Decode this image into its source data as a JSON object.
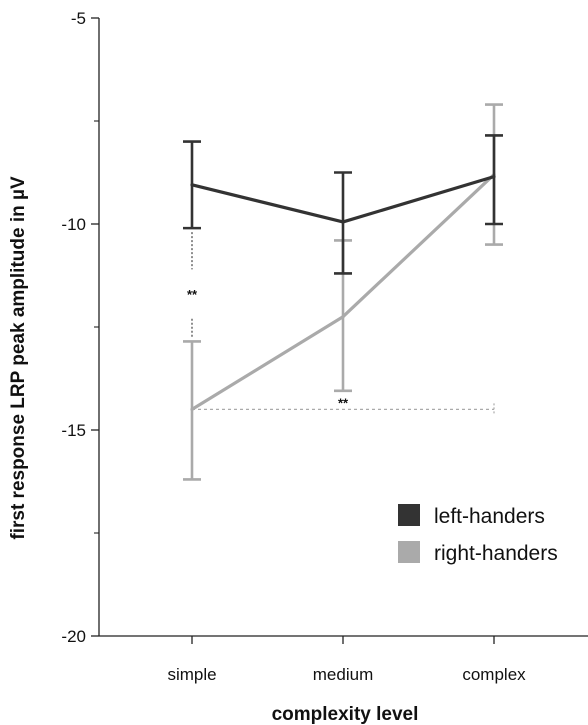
{
  "chart_data": {
    "type": "line",
    "title": "",
    "xlabel": "complexity level",
    "ylabel": "first response LRP peak amplitude in  µV",
    "categories": [
      "simple",
      "medium",
      "complex"
    ],
    "ylim": [
      -20,
      -5
    ],
    "yticks": [
      -5,
      -10,
      -15,
      -20
    ],
    "yticklabels": [
      "-5",
      "-10",
      "-15",
      "-20"
    ],
    "grid": false,
    "legend_position": "bottom-right",
    "series": [
      {
        "name": "left-handers",
        "color": "#333333",
        "values": [
          -9.05,
          -9.95,
          -8.85
        ],
        "error_low": [
          -10.1,
          -11.2,
          -10.0
        ],
        "error_high": [
          -8.0,
          -8.75,
          -7.85
        ]
      },
      {
        "name": "right-handers",
        "color": "#aaaaaa",
        "values": [
          -14.5,
          -12.25,
          -8.8
        ],
        "error_low": [
          -16.2,
          -14.05,
          -10.5
        ],
        "error_high": [
          -12.85,
          -10.4,
          -7.1
        ]
      }
    ],
    "annotations": [
      {
        "text": "**",
        "between": [
          "left-handers simple",
          "right-handers simple"
        ]
      },
      {
        "text": "**",
        "between": [
          "right-handers simple",
          "right-handers complex"
        ]
      }
    ]
  }
}
